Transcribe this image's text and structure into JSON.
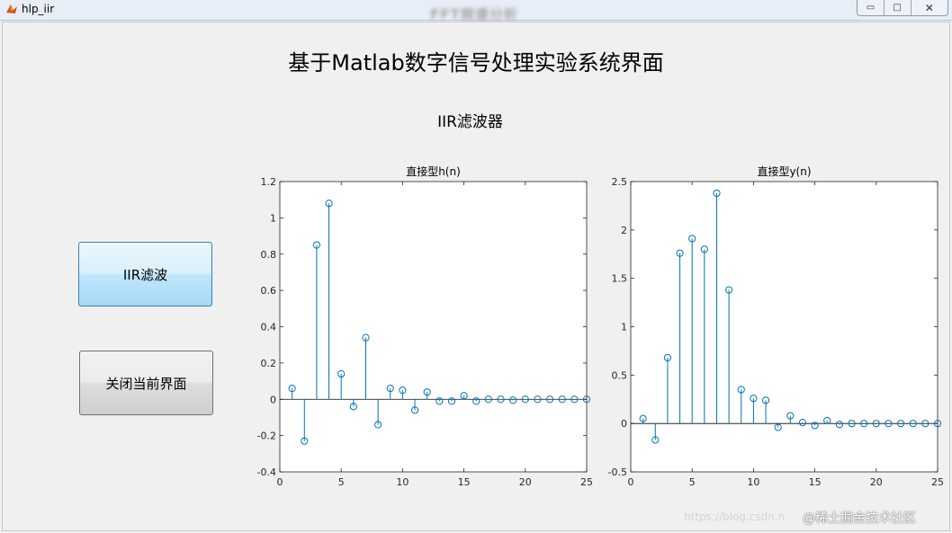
{
  "window": {
    "title": "hlp_iir",
    "blurred_caption": "FFT频谱分析",
    "controls": {
      "minimize": "▭",
      "maximize": "□",
      "close": "✕"
    }
  },
  "page": {
    "title": "基于Matlab数字信号处理实验系统界面",
    "subtitle": "IIR滤波器"
  },
  "buttons": {
    "iir_label": "IIR滤波",
    "close_label": "关闭当前界面"
  },
  "colors": {
    "stem": "#0072bd",
    "iir_button": "#bee6fd"
  },
  "watermark": {
    "text": "@稀土掘金技术社区",
    "url": "https://blog.csdn.n"
  },
  "chart_data": [
    {
      "type": "stem",
      "title": "直接型h(n)",
      "xlabel": "",
      "ylabel": "",
      "xlim": [
        0,
        25
      ],
      "ylim": [
        -0.4,
        1.2
      ],
      "xticks": [
        0,
        5,
        10,
        15,
        20,
        25
      ],
      "yticks": [
        -0.4,
        -0.2,
        0,
        0.2,
        0.4,
        0.6,
        0.8,
        1,
        1.2
      ],
      "x": [
        1,
        2,
        3,
        4,
        5,
        6,
        7,
        8,
        9,
        10,
        11,
        12,
        13,
        14,
        15,
        16,
        17,
        18,
        19,
        20,
        21,
        22,
        23,
        24,
        25
      ],
      "y": [
        0.06,
        -0.23,
        0.85,
        1.08,
        0.14,
        -0.04,
        0.34,
        -0.14,
        0.06,
        0.05,
        -0.06,
        0.04,
        -0.01,
        -0.01,
        0.02,
        -0.01,
        0,
        0,
        -0.005,
        0,
        0,
        0,
        0,
        0,
        0
      ]
    },
    {
      "type": "stem",
      "title": "直接型y(n)",
      "xlabel": "",
      "ylabel": "",
      "xlim": [
        0,
        25
      ],
      "ylim": [
        -0.5,
        2.5
      ],
      "xticks": [
        0,
        5,
        10,
        15,
        20,
        25
      ],
      "yticks": [
        -0.5,
        0,
        0.5,
        1,
        1.5,
        2,
        2.5
      ],
      "x": [
        1,
        2,
        3,
        4,
        5,
        6,
        7,
        8,
        9,
        10,
        11,
        12,
        13,
        14,
        15,
        16,
        17,
        18,
        19,
        20,
        21,
        22,
        23,
        24,
        25
      ],
      "y": [
        0.05,
        -0.17,
        0.68,
        1.76,
        1.91,
        1.8,
        2.38,
        1.38,
        0.35,
        0.26,
        0.24,
        -0.04,
        0.08,
        0.01,
        -0.02,
        0.03,
        -0.01,
        0,
        0,
        0,
        0,
        0,
        0,
        0,
        0
      ]
    }
  ]
}
